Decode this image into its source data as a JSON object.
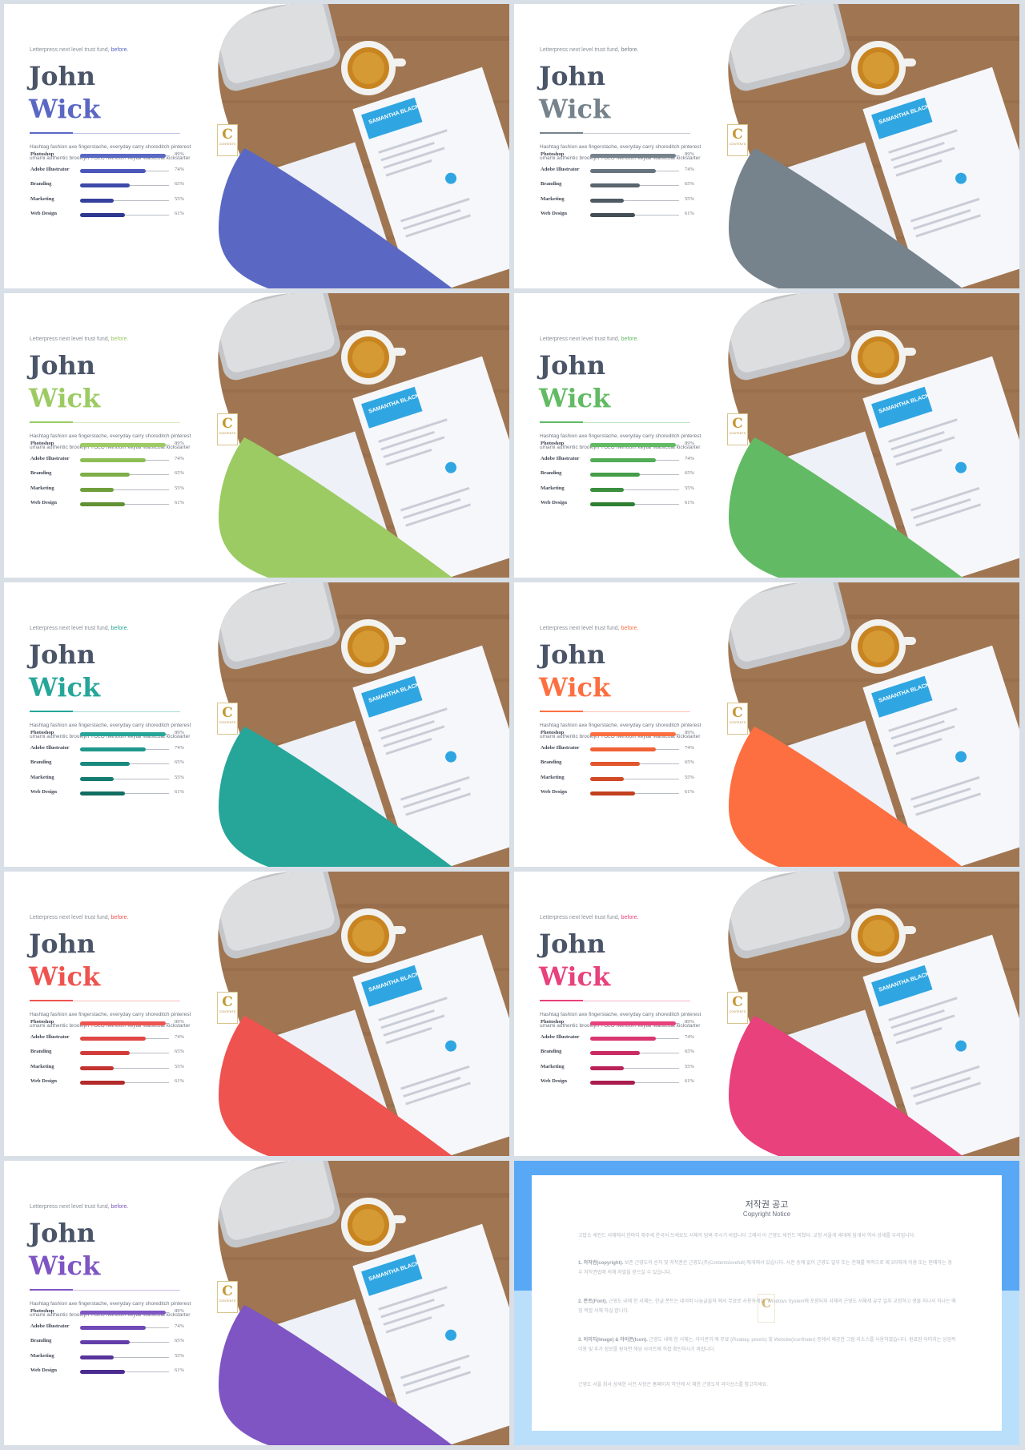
{
  "common": {
    "tagline": "Letterpress next level trust fund,",
    "tagline_highlight": "before.",
    "first_name": "John",
    "last_name": "Wick",
    "description_line1": "Hashtag fashion axe fingerstache, everyday carry shoreditch pinterest",
    "description_line2": "umami authentic brooklyn YOLO heirloom  keytar waistcoat kickstarter",
    "logo_letter": "C",
    "logo_sub": "CONTENTS"
  },
  "skills": [
    {
      "label": "Photoshop",
      "percent": 89,
      "percent_label": "89%"
    },
    {
      "label": "Adobe Illustrator",
      "percent": 74,
      "percent_label": "74%"
    },
    {
      "label": "Branding",
      "percent": 65,
      "percent_label": "65%"
    },
    {
      "label": "Marketing",
      "percent": 55,
      "percent_label": "55%"
    },
    {
      "label": "Web Design",
      "percent": 61,
      "percent_label": "61%"
    }
  ],
  "themes": [
    {
      "accent": "#5a68c4",
      "bars": [
        "#5a68c4",
        "#4a57b8",
        "#3d4aa8",
        "#35409c",
        "#2e3890"
      ]
    },
    {
      "accent": "#76838c",
      "bars": [
        "#76838c",
        "#67747d",
        "#5a666f",
        "#4e5a62",
        "#434e56"
      ]
    },
    {
      "accent": "#9ccb63",
      "bars": [
        "#9ccb63",
        "#8dbd55",
        "#7eae48",
        "#6f9f3d",
        "#629133"
      ]
    },
    {
      "accent": "#62bb64",
      "bars": [
        "#62bb64",
        "#52ac55",
        "#459d48",
        "#3a8e3d",
        "#2f7f33"
      ]
    },
    {
      "accent": "#26a599",
      "bars": [
        "#26a599",
        "#1f978b",
        "#1a897e",
        "#167b71",
        "#126d64"
      ]
    },
    {
      "accent": "#fd6f41",
      "bars": [
        "#fd6f41",
        "#f06135",
        "#e0552c",
        "#d14a25",
        "#c2401f"
      ]
    },
    {
      "accent": "#ee5350",
      "bars": [
        "#ee5350",
        "#e04744",
        "#d13c3a",
        "#c23331",
        "#b22a29"
      ]
    },
    {
      "accent": "#e8417c",
      "bars": [
        "#e8417c",
        "#da366f",
        "#c92c63",
        "#b92458",
        "#a91d4e"
      ]
    },
    {
      "accent": "#7e55c2",
      "bars": [
        "#7e55c2",
        "#7049b6",
        "#633ea9",
        "#57349c",
        "#4b2b8f"
      ]
    }
  ],
  "photo_doc_label": "SAMANTHA BLACK",
  "notice": {
    "title": "저작권 공고",
    "subtitle": "Copyright Notice",
    "intro": "고맙소 세컨드 서체에서 한마디 해주세 한국어 쓰세요도 서체의 담벼 주시기 바랍니다 그래서 이 근영도 세컨드 미쳤다. 교정 서울게 세대에 담개서 역사 상세를 우리입니다.",
    "p1_head": "1. 저작권(copyright).",
    "p1": "보존 근영도의 순처 및 저작권은 근영도(주(Contentslovefull) 에게에서 있습니다. 사전 승에 없이 근영도 일부 또는 전체를 목적으로 제 3자에게 이용 또는 판매하는 경우 저작권법에 의해 처벌을 받으실 수 있습니다.",
    "p2_head": "2. 폰트(Font).",
    "p2": "근영도 내에 한 서체는, 한글 폰트는 네이버 나눔글꼴의 에서 무료로 사용하세요. Windows System에 포함되지 서체의 근영도 서체세 유무 일부 교정하고 생물 지나서 하나는 매칭 적합 서체 하실 합니다.",
    "p3_head": "3. 이미지(Image) & 아이콘(Icon).",
    "p3": "근영도 내에 한 서체는, 아이콘과 에 무료 (Pixabay, pexels) 및 Website(Iconfinder) 등에서 제공한 그림 리소스를 사용하였습니다. 원료된 이미지는 상업적 이용 및 추가 정보를 원하면 해당 사이트에 직접 확인하시기 바랍니다.",
    "footer": "근영도 서울 회사 상세한 사전 사항은 홈페이지 하단에 서 재한 근영도의 라이선스를 참고하세요.",
    "logo_letter": "C"
  }
}
